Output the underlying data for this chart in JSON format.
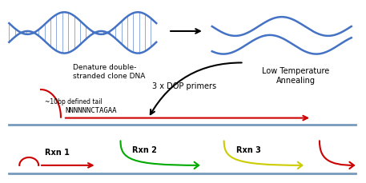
{
  "bg_color": "#ffffff",
  "dna_color": "#4472c4",
  "arrow_color": "#000000",
  "red_color": "#cc0000",
  "green_color": "#00aa00",
  "yellow_color": "#cccc00",
  "blue_line_color": "#7799bb",
  "text_color": "#000000",
  "title_label": "Denature double-\nstranded clone DNA",
  "dop_label": "3 x DOP primers",
  "low_temp_label": "Low Temperature\nAnnealing",
  "tail_label": "~10bp defined tail",
  "primer_seq": "NNNNNNCTAGAA",
  "rxn1_label": "Rxn 1",
  "rxn2_label": "Rxn 2",
  "rxn3_label": "Rxn 3"
}
